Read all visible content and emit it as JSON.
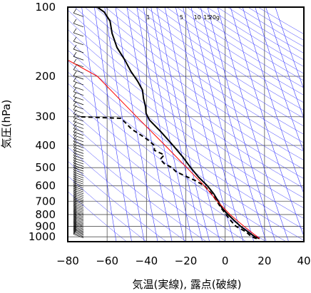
{
  "chart_data": {
    "type": "line",
    "chart_kind": "emagram",
    "xlabel": "気温(実線), 露点(破線)",
    "ylabel": "気圧(hPa)",
    "xlim": [
      -80,
      40
    ],
    "ylim": [
      1050,
      100
    ],
    "yscale": "log",
    "x_ticks": [
      -80,
      -60,
      -40,
      -20,
      0,
      20,
      40
    ],
    "x_tick_labels": [
      "−80",
      "−60",
      "−40",
      "−20",
      "0",
      "20",
      "40"
    ],
    "y_ticks": [
      100,
      200,
      300,
      400,
      500,
      600,
      700,
      800,
      900,
      1000
    ],
    "y_tick_labels": [
      "100",
      "200",
      "300",
      "400",
      "500",
      "600",
      "700",
      "800",
      "900",
      "1000"
    ],
    "mixing_ratio_labels": [
      {
        "w": 1,
        "text": "1"
      },
      {
        "w": 5,
        "text": "5"
      },
      {
        "w": 10,
        "text": "10"
      },
      {
        "w": 15,
        "text": "15"
      },
      {
        "w": 20,
        "text": "20g"
      }
    ],
    "series": [
      {
        "style": "solid",
        "color": "#000000",
        "points": [
          {
            "p": 1018,
            "t": 17.5
          },
          {
            "p": 1000,
            "t": 15.2
          },
          {
            "p": 950,
            "t": 11.5
          },
          {
            "p": 900,
            "t": 7.8
          },
          {
            "p": 850,
            "t": 4.6
          },
          {
            "p": 800,
            "t": 1.5
          },
          {
            "p": 750,
            "t": -1.6
          },
          {
            "p": 700,
            "t": -3.5
          },
          {
            "p": 650,
            "t": -5.8
          },
          {
            "p": 600,
            "t": -9.0
          },
          {
            "p": 550,
            "t": -13.5
          },
          {
            "p": 500,
            "t": -17.5
          },
          {
            "p": 450,
            "t": -21.5
          },
          {
            "p": 400,
            "t": -26.5
          },
          {
            "p": 350,
            "t": -32.5
          },
          {
            "p": 310,
            "t": -38.5
          },
          {
            "p": 290,
            "t": -40.2
          },
          {
            "p": 270,
            "t": -40.5
          },
          {
            "p": 250,
            "t": -41.5
          },
          {
            "p": 230,
            "t": -42.0
          },
          {
            "p": 210,
            "t": -44.5
          },
          {
            "p": 190,
            "t": -48.0
          },
          {
            "p": 170,
            "t": -51.0
          },
          {
            "p": 150,
            "t": -55.0
          },
          {
            "p": 130,
            "t": -57.5
          },
          {
            "p": 115,
            "t": -58.5
          },
          {
            "p": 105,
            "t": -61.5
          },
          {
            "p": 100,
            "t": -65.0
          }
        ]
      },
      {
        "style": "dashed",
        "color": "#000000",
        "points": [
          {
            "p": 1018,
            "t": 16.0
          },
          {
            "p": 1000,
            "t": 13.5
          },
          {
            "p": 950,
            "t": 10.5
          },
          {
            "p": 900,
            "t": 5.5
          },
          {
            "p": 850,
            "t": 2.8
          },
          {
            "p": 800,
            "t": 0.5
          },
          {
            "p": 750,
            "t": -2.0
          },
          {
            "p": 700,
            "t": -4.2
          },
          {
            "p": 650,
            "t": -6.8
          },
          {
            "p": 600,
            "t": -10.5
          },
          {
            "p": 570,
            "t": -15.0
          },
          {
            "p": 540,
            "t": -21.0
          },
          {
            "p": 520,
            "t": -25.0
          },
          {
            "p": 500,
            "t": -27.0
          },
          {
            "p": 480,
            "t": -31.0
          },
          {
            "p": 460,
            "t": -33.0
          },
          {
            "p": 440,
            "t": -31.0
          },
          {
            "p": 420,
            "t": -36.0
          },
          {
            "p": 400,
            "t": -36.0
          },
          {
            "p": 380,
            "t": -39.0
          },
          {
            "p": 360,
            "t": -43.0
          },
          {
            "p": 340,
            "t": -47.5
          },
          {
            "p": 320,
            "t": -50.5
          },
          {
            "p": 305,
            "t": -53.0
          },
          {
            "p": 300,
            "t": -75.0
          }
        ]
      },
      {
        "style": "solid",
        "color": "#ff0000",
        "points": [
          {
            "p": 1018,
            "t": 17.5
          },
          {
            "p": 900,
            "t": 9.5
          },
          {
            "p": 800,
            "t": 2.5
          },
          {
            "p": 700,
            "t": -4.0
          },
          {
            "p": 600,
            "t": -10.5
          },
          {
            "p": 500,
            "t": -19.5
          },
          {
            "p": 400,
            "t": -30.5
          },
          {
            "p": 300,
            "t": -45.0
          },
          {
            "p": 200,
            "t": -65.0
          },
          {
            "p": 170,
            "t": -80.0
          }
        ]
      }
    ],
    "grid": true,
    "colors": {
      "grid": "#555555",
      "mixing_ratio_lines": "#3a3aff",
      "lifted_parcel": "#ff0000"
    }
  }
}
